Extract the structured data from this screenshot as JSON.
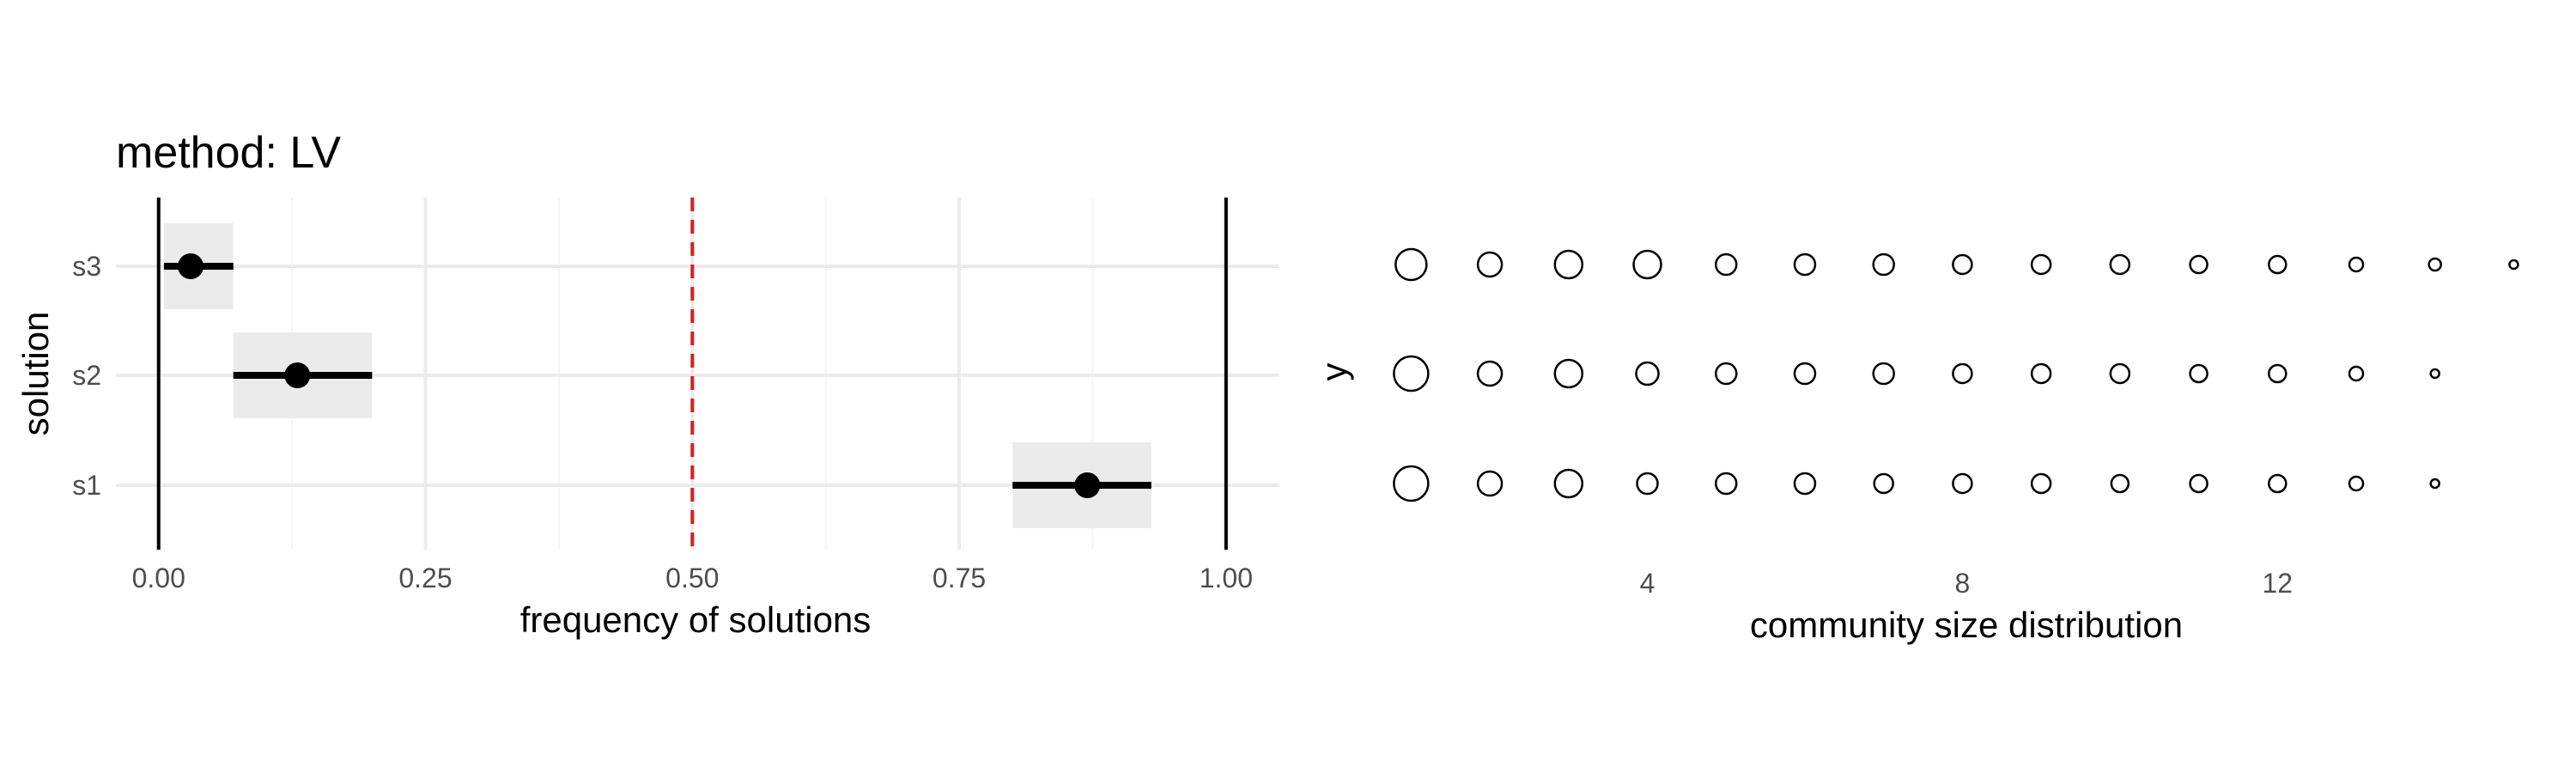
{
  "chart_data": [
    {
      "type": "interval",
      "title": "method: LV",
      "xlabel": "frequency of solutions",
      "ylabel": "solution",
      "xlim": [
        -0.04,
        1.05
      ],
      "x_ticks": [
        "0.00",
        "0.25",
        "0.50",
        "0.75",
        "1.00"
      ],
      "categories": [
        "s1",
        "s2",
        "s3"
      ],
      "points": [
        {
          "category": "s1",
          "value": 0.87,
          "ci_low": 0.8,
          "ci_high": 0.93
        },
        {
          "category": "s2",
          "value": 0.13,
          "ci_low": 0.07,
          "ci_high": 0.2
        },
        {
          "category": "s3",
          "value": 0.03,
          "ci_low": 0.005,
          "ci_high": 0.07
        }
      ],
      "reference_lines": [
        {
          "x": 0.5,
          "style": "dashed",
          "color": "#e41a1c"
        },
        {
          "x": 0.0,
          "style": "solid",
          "color": "#000000"
        },
        {
          "x": 1.0,
          "style": "solid",
          "color": "#000000"
        }
      ],
      "grid": true,
      "colors": {
        "point": "#000000",
        "band": "#ebebeb"
      }
    },
    {
      "type": "scatter",
      "title": "",
      "xlabel": "community size distribution",
      "ylabel": "y",
      "x_ticks": [
        "4",
        "8",
        "12"
      ],
      "xlim": [
        0.8,
        15.3
      ],
      "grid": false,
      "rows": [
        {
          "x": [
            1,
            2,
            3,
            4,
            5,
            6,
            7,
            8,
            9,
            10,
            11,
            12,
            13,
            14,
            15
          ],
          "size": [
            18,
            14,
            16,
            16,
            12,
            12,
            12,
            11,
            11,
            11,
            10,
            10,
            8,
            7,
            5
          ]
        },
        {
          "x": [
            1,
            2,
            3,
            4,
            5,
            6,
            7,
            8,
            9,
            10,
            11,
            12,
            13,
            14
          ],
          "size": [
            20,
            14,
            16,
            13,
            12,
            12,
            12,
            11,
            11,
            11,
            10,
            10,
            8,
            5
          ]
        },
        {
          "x": [
            1,
            2,
            3,
            4,
            5,
            6,
            7,
            8,
            9,
            10,
            11,
            12,
            13,
            14
          ],
          "size": [
            20,
            14,
            16,
            12,
            12,
            12,
            11,
            11,
            11,
            10,
            10,
            10,
            8,
            5
          ]
        }
      ]
    }
  ]
}
